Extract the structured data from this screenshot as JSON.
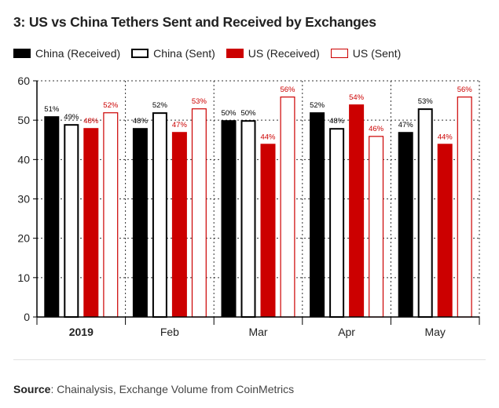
{
  "title": "3: US vs China Tethers Sent and Received by Exchanges",
  "colors": {
    "black": "#000000",
    "red": "#cc0000",
    "white": "#ffffff"
  },
  "source": {
    "label": "Source",
    "text": ": Chainalysis, Exchange Volume from CoinMetrics"
  },
  "chart_data": {
    "type": "bar",
    "categories": [
      "2019",
      "Feb",
      "Mar",
      "Apr",
      "May"
    ],
    "ylim": [
      0,
      60
    ],
    "yticks": [
      0,
      10,
      20,
      30,
      40,
      50,
      60
    ],
    "grid": true,
    "legend_position": "top",
    "series": [
      {
        "name": "China (Received)",
        "fill": "#000000",
        "stroke": "#000000",
        "label_color": "#000000",
        "values": [
          51,
          48,
          50,
          52,
          47
        ],
        "labels": [
          "51%",
          "48%",
          "50%",
          "52%",
          "47%"
        ]
      },
      {
        "name": "China (Sent)",
        "fill": "#ffffff",
        "stroke": "#000000",
        "label_color": "#000000",
        "values": [
          49,
          52,
          50,
          48,
          53
        ],
        "labels": [
          "49%",
          "52%",
          "50%",
          "48%",
          "53%"
        ]
      },
      {
        "name": "US (Received)",
        "fill": "#cc0000",
        "stroke": "#cc0000",
        "label_color": "#cc0000",
        "values": [
          48,
          47,
          44,
          54,
          44
        ],
        "labels": [
          "48%",
          "47%",
          "44%",
          "54%",
          "44%"
        ]
      },
      {
        "name": "US (Sent)",
        "fill": "#ffffff",
        "stroke": "#cc0000",
        "label_color": "#cc0000",
        "values": [
          52,
          53,
          56,
          46,
          56
        ],
        "labels": [
          "52%",
          "53%",
          "56%",
          "46%",
          "56%"
        ]
      }
    ]
  }
}
